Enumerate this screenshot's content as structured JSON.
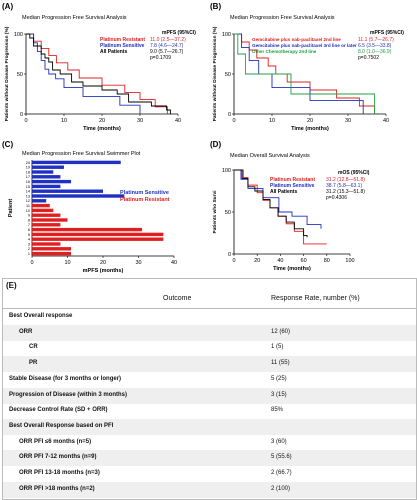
{
  "panels": {
    "A": {
      "label": "(A)",
      "title": "Median Progression Free Survival Analysis",
      "ylabel": "Patients without Disease Progression (%)",
      "xlabel": "Time (months)",
      "stats_header": "mPFS (95%CI)",
      "legend": [
        {
          "name": "Platinum Resistant",
          "stat": "11.0 (2.5—37.2)",
          "color": "#e02020"
        },
        {
          "name": "Platinum Sensitive",
          "stat": "7.8  (4.6—24.7)",
          "color": "#2030c0"
        },
        {
          "name": "All Patients",
          "stat": "9.0  (5.7—26.7)",
          "color": "#000000"
        }
      ],
      "pvalue": "p=0.1709"
    },
    "B": {
      "label": "(B)",
      "title": "Median Progression Free Survival Analysis",
      "ylabel": "Patients without Disease Progression (%)",
      "xlabel": "Time (months)",
      "stats_header": "mPFS (95%CI)",
      "legend": [
        {
          "name": "Gemcitabine plus nab-paclitaxel 2nd line",
          "stat": "11.1 (5.7—26.7)",
          "color": "#e02020"
        },
        {
          "name": "Gemcitabine plus nab-paclitaxel 3rd line or later",
          "stat": "6.5  (3.5—33.8)",
          "color": "#2030c0"
        },
        {
          "name": "Other Chemotherapy 2nd line",
          "stat": "8.0  (1.0—36.9)",
          "color": "#20a040"
        }
      ],
      "pvalue": "p=0.7502"
    },
    "C": {
      "label": "(C)",
      "title": "Median Progression Free Survival Swimmer Plot",
      "ylabel": "Patient",
      "xlabel": "mPFS (months)",
      "legend": [
        {
          "name": "Platinum Sensitive",
          "color": "#2030c0"
        },
        {
          "name": "Platinum Resistant",
          "color": "#e02020"
        }
      ]
    },
    "D": {
      "label": "(D)",
      "title": "Median Overall Survival Analysis",
      "ylabel": "Patients who Survi",
      "xlabel": "Time (months)",
      "stats_header": "mOS (95%CI)",
      "legend": [
        {
          "name": "Platinum Resistant",
          "stat": "31.2 (12.8—51.8)",
          "color": "#e02020"
        },
        {
          "name": "Platinum Sensitive",
          "stat": "38.7 (5.8—63.1)",
          "color": "#2030c0"
        },
        {
          "name": "All Patients",
          "stat": "31.2 (15.3—51.8)",
          "color": "#000000"
        }
      ],
      "pvalue": "p=0.4306"
    }
  },
  "table": {
    "label": "(E)",
    "header": {
      "outcome": "Outcome",
      "rate": "Response Rate, number (%)"
    },
    "rows": [
      {
        "outcome": "Best Overall response",
        "rate": "",
        "indent": 0,
        "bold": true
      },
      {
        "outcome": "ORR",
        "rate": "12 (60)",
        "indent": 1,
        "bold": true
      },
      {
        "outcome": "CR",
        "rate": "1 (5)",
        "indent": 2,
        "bold": true
      },
      {
        "outcome": "PR",
        "rate": "11 (55)",
        "indent": 2,
        "bold": true
      },
      {
        "outcome": "Stable Disease (for 3 months or longer)",
        "rate": "5 (25)",
        "indent": 0,
        "bold": true
      },
      {
        "outcome": "Progression of Disease (within 3 months)",
        "rate": "3 (15)",
        "indent": 0,
        "bold": true
      },
      {
        "outcome": "Decrease Control Rate (SD + ORR)",
        "rate": "85%",
        "indent": 0,
        "bold": true
      },
      {
        "outcome": "Best Overall Response based on PFI",
        "rate": "",
        "indent": 0,
        "bold": true
      },
      {
        "outcome": "ORR PFI ≤6 months (n=5)",
        "rate": "3 (60)",
        "indent": 1,
        "bold": true
      },
      {
        "outcome": "ORR PFI 7-12 months (n=9)",
        "rate": "5 (55.6)",
        "indent": 1,
        "bold": true
      },
      {
        "outcome": "ORR PFI 13-18 months (n=3)",
        "rate": "2 (66.7)",
        "indent": 1,
        "bold": true
      },
      {
        "outcome": "ORR PFI >18 months (n=2)",
        "rate": "2 (100)",
        "indent": 1,
        "bold": true
      }
    ]
  },
  "chart_data": [
    {
      "type": "line",
      "title": "Median Progression Free Survival Analysis",
      "xlabel": "Time (months)",
      "ylabel": "Patients without Disease Progression (%)",
      "xlim": [
        0,
        40
      ],
      "ylim": [
        0,
        100
      ],
      "xticks": [
        0,
        10,
        20,
        30,
        40
      ],
      "yticks": [
        0,
        50,
        100
      ],
      "series": [
        {
          "name": "Platinum Resistant",
          "color": "#e02020",
          "x": [
            0,
            2,
            4,
            6,
            8,
            11,
            14,
            20,
            26,
            30,
            34,
            37,
            37.2
          ],
          "y": [
            100,
            91,
            82,
            73,
            64,
            55,
            45,
            36,
            27,
            18,
            9,
            9,
            0
          ]
        },
        {
          "name": "Platinum Sensitive",
          "color": "#2030c0",
          "x": [
            0,
            2,
            3,
            4,
            5,
            6,
            7.8,
            10,
            15,
            20,
            24.7,
            30
          ],
          "y": [
            100,
            89,
            78,
            67,
            56,
            50,
            44,
            33,
            22,
            22,
            11,
            0
          ]
        },
        {
          "name": "All Patients",
          "color": "#000000",
          "x": [
            0,
            1,
            2,
            4,
            5,
            6,
            7,
            9,
            12,
            15,
            20,
            24,
            27,
            33,
            37,
            38
          ],
          "y": [
            100,
            95,
            85,
            75,
            70,
            65,
            55,
            50,
            40,
            35,
            30,
            25,
            15,
            10,
            5,
            0
          ]
        }
      ]
    },
    {
      "type": "line",
      "title": "Median Progression Free Survival Analysis",
      "xlabel": "Time (months)",
      "ylabel": "Patients without Disease Progression (%)",
      "xlim": [
        0,
        40
      ],
      "ylim": [
        0,
        100
      ],
      "xticks": [
        0,
        10,
        20,
        30,
        40
      ],
      "yticks": [
        0,
        50,
        100
      ],
      "series": [
        {
          "name": "Gemcitabine plus nab-paclitaxel 2nd line",
          "color": "#e02020",
          "x": [
            0,
            2,
            4,
            6,
            9,
            11,
            14,
            20,
            27,
            33,
            37
          ],
          "y": [
            100,
            90,
            80,
            70,
            60,
            50,
            40,
            30,
            20,
            10,
            0
          ]
        },
        {
          "name": "Gemcitabine plus nab-paclitaxel 3rd line or later",
          "color": "#2030c0",
          "x": [
            0,
            2,
            4,
            6.5,
            10,
            20,
            34
          ],
          "y": [
            100,
            83,
            67,
            50,
            33,
            17,
            0
          ]
        },
        {
          "name": "Other Chemotherapy 2nd line",
          "color": "#20a040",
          "x": [
            0,
            1,
            3,
            8,
            15,
            25,
            37
          ],
          "y": [
            100,
            75,
            50,
            50,
            25,
            25,
            0
          ]
        }
      ]
    },
    {
      "type": "bar",
      "orientation": "horizontal",
      "title": "Median Progression Free Survival Swimmer Plot",
      "xlabel": "mPFS (months)",
      "ylabel": "Patient",
      "xlim": [
        0,
        40
      ],
      "xticks": [
        0,
        10,
        20,
        30,
        40
      ],
      "categories": [
        "1",
        "2",
        "3",
        "4",
        "5",
        "6",
        "7",
        "8",
        "9",
        "10",
        "11",
        "12",
        "13",
        "14",
        "15",
        "16",
        "17",
        "18",
        "19",
        "20"
      ],
      "values": [
        11,
        11,
        8,
        37,
        37,
        31,
        8,
        10,
        8,
        6,
        5,
        4,
        26,
        20,
        8,
        11,
        8,
        6,
        9,
        25
      ],
      "colors": [
        "#e02020",
        "#e02020",
        "#e02020",
        "#e02020",
        "#e02020",
        "#e02020",
        "#e02020",
        "#e02020",
        "#e02020",
        "#e02020",
        "#e02020",
        "#2030c0",
        "#2030c0",
        "#2030c0",
        "#2030c0",
        "#2030c0",
        "#2030c0",
        "#2030c0",
        "#2030c0",
        "#2030c0"
      ]
    },
    {
      "type": "line",
      "title": "Median Overall Survival Analysis",
      "xlabel": "Time (months)",
      "ylabel": "Patients who Survi",
      "xlim": [
        0,
        100
      ],
      "ylim": [
        0,
        100
      ],
      "xticks": [
        0,
        20,
        40,
        60,
        80,
        100
      ],
      "yticks": [
        0,
        50,
        100
      ],
      "series": [
        {
          "name": "Platinum Resistant",
          "color": "#e02020",
          "x": [
            0,
            8,
            12,
            20,
            25,
            31,
            38,
            45,
            52,
            60,
            80
          ],
          "y": [
            100,
            91,
            82,
            73,
            64,
            55,
            45,
            36,
            27,
            12,
            12
          ]
        },
        {
          "name": "Platinum Sensitive",
          "color": "#2030c0",
          "x": [
            0,
            6,
            12,
            25,
            38.7,
            50,
            63,
            75
          ],
          "y": [
            100,
            89,
            78,
            67,
            50,
            45,
            35,
            30
          ]
        },
        {
          "name": "All Patients",
          "color": "#000000",
          "x": [
            0,
            7,
            12,
            18,
            25,
            31,
            38,
            45,
            52,
            60,
            63
          ],
          "y": [
            100,
            90,
            80,
            75,
            65,
            55,
            45,
            38,
            30,
            22,
            20
          ]
        }
      ]
    }
  ]
}
